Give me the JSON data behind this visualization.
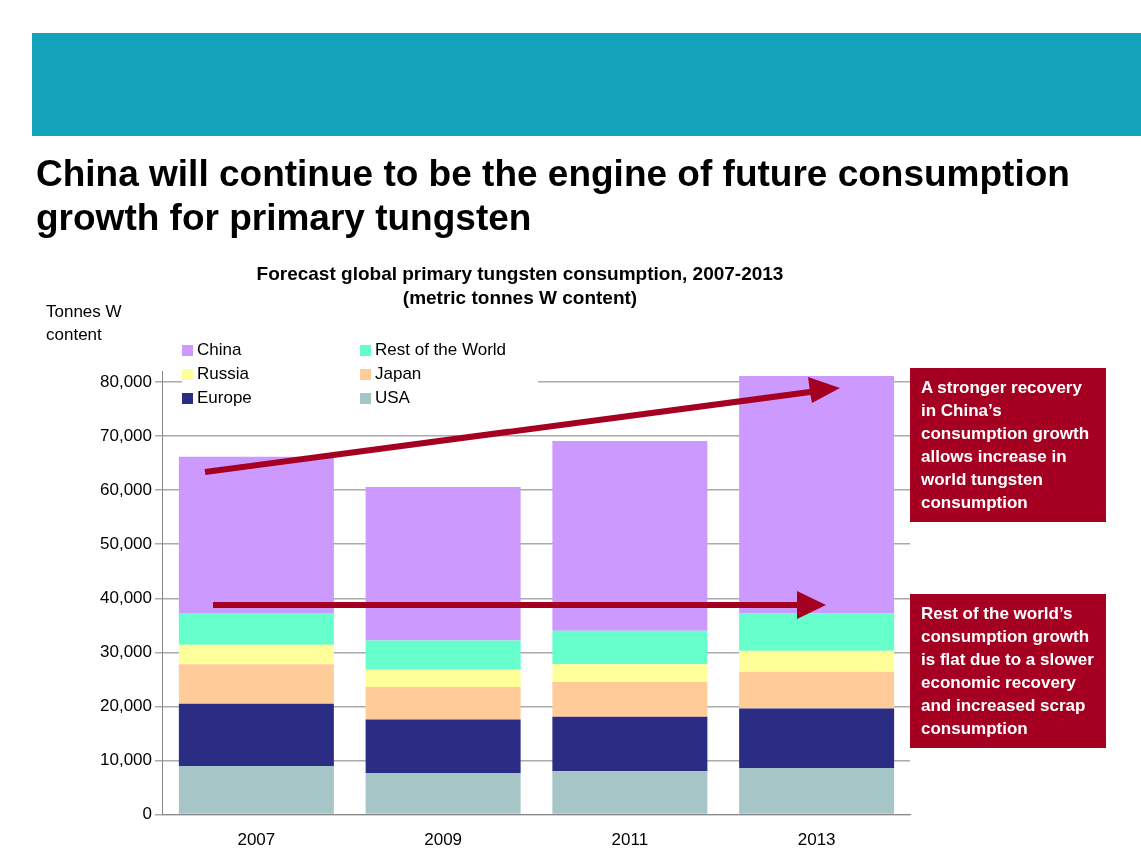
{
  "chart_data": {
    "type": "bar",
    "title": "China will continue to be the engine of future consumption growth for primary tungsten",
    "subtitle": "Forecast global primary tungsten consumption, 2007-2013\n(metric tonnes W content)",
    "ylabel": "Tonnes W content",
    "categories": [
      "2007",
      "2009",
      "2011",
      "2013"
    ],
    "stacked": true,
    "series": [
      {
        "name": "USA",
        "color": "#a5c5c7",
        "values": [
          9000,
          7700,
          8000,
          8600
        ]
      },
      {
        "name": "Europe",
        "color": "#2b2d84",
        "values": [
          11500,
          9900,
          10100,
          11000
        ]
      },
      {
        "name": "Japan",
        "color": "#ffcc99",
        "values": [
          7300,
          6000,
          6400,
          6800
        ]
      },
      {
        "name": "Russia",
        "color": "#ffff99",
        "values": [
          3600,
          3200,
          3300,
          3900
        ]
      },
      {
        "name": "Rest of the World",
        "color": "#66ffcc",
        "values": [
          5900,
          5400,
          6200,
          6900
        ]
      },
      {
        "name": "China",
        "color": "#cc99ff",
        "values": [
          28900,
          28400,
          35100,
          43900
        ]
      }
    ],
    "ylim": [
      0,
      82000
    ],
    "yticks": [
      0,
      {
        "value": 10000,
        "label": "10,000"
      },
      {
        "value": 20000,
        "label": "20,000"
      },
      {
        "value": 30000,
        "label": "30,000"
      },
      {
        "value": 40000,
        "label": "40,000"
      },
      {
        "value": 50000,
        "label": "50,000"
      },
      {
        "value": 60000,
        "label": "60,000"
      },
      {
        "value": 70000,
        "label": "70,000"
      },
      {
        "value": 80000,
        "label": "80,000"
      }
    ],
    "grid": "y",
    "legend": "top left",
    "annotations": [
      "A stronger recovery in China’s consumption growth allows increase in world tungsten consumption",
      "Rest of the world’s consumption growth is flat due to  a slower economic recovery and increased scrap consumption"
    ]
  }
}
